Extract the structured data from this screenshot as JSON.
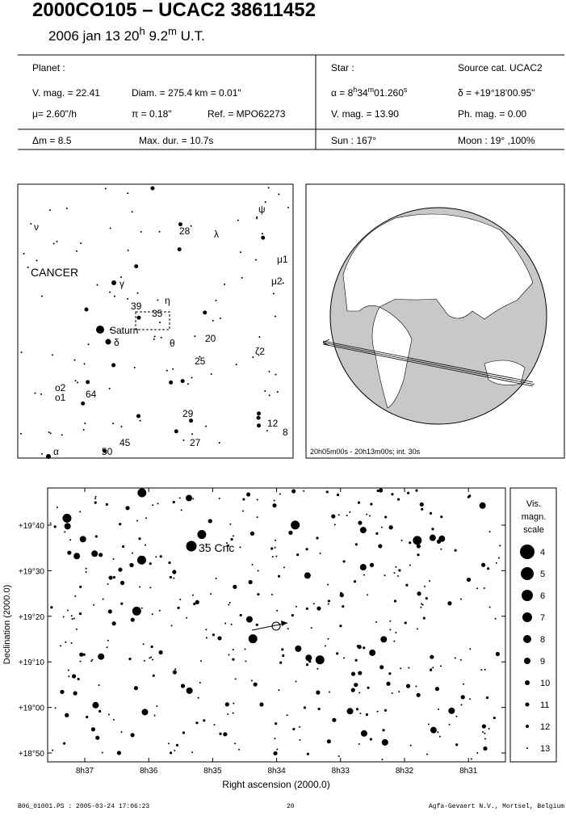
{
  "header": {
    "title": "2000CO105  –  UCAC2 38611452",
    "date": [
      "2006 jan 13  20",
      "h",
      " 9.2",
      "m",
      " U.T."
    ]
  },
  "info": {
    "planet_label": "Planet :",
    "vmag": "V. mag. = 22.41",
    "diam": "Diam. = 275.4 km = 0.01\"",
    "mu": "μ=  2.60\"/h",
    "pi": "π =  0.18\"",
    "ref": "Ref. = MPO62273",
    "star_label": "Star :",
    "source": "Source cat.  UCAC2",
    "alpha": [
      "α = 8",
      "h",
      "34",
      "m",
      "01.260",
      "s"
    ],
    "delta": "δ = +19°18'00.95\"",
    "star_vmag": "V. mag. = 13.90",
    "phmag": "Ph. mag. =  0.00",
    "dm": "Δm = 8.5",
    "maxdur": "Max. dur. = 10.7s",
    "sun": "Sun : 167°",
    "moon": "Moon :  19° ,100%"
  },
  "finder": {
    "labels": [
      "ν",
      "ψ",
      "28",
      "λ",
      "μ1",
      "CANCER",
      "γ",
      "μ2",
      "39",
      "η",
      "35",
      "Saturn",
      "20",
      "δ",
      "θ",
      "25",
      "ζ2",
      "ο2",
      "ο1",
      "64",
      "29",
      "12",
      "8",
      "45",
      "27",
      "α",
      "50"
    ]
  },
  "globe": {
    "caption": "20h05m00s - 20h13m00s; int. 30s"
  },
  "chart": {
    "yticks": [
      "+19°40",
      "+19°30",
      "+19°20",
      "+19°10",
      "+19°00",
      "+18°50"
    ],
    "xticks": [
      "8h37",
      "8h36",
      "8h35",
      "8h34",
      "8h33",
      "8h32",
      "8h31"
    ],
    "ylabel": "Declination (2000.0)",
    "xlabel": "Right ascension (2000.0)",
    "annotation": "35 Cnc"
  },
  "scale": {
    "title": [
      "Vis.",
      "magn.",
      "scale"
    ],
    "mags": [
      "4",
      "5",
      "6",
      "7",
      "8",
      "9",
      "10",
      "11",
      "12",
      "13"
    ]
  },
  "footer": {
    "left": "B06_01001.PS : 2005-03-24 17:06:23",
    "center": "20",
    "right": "Agfa-Gevaert N.V., Mortsel, Belgium"
  }
}
